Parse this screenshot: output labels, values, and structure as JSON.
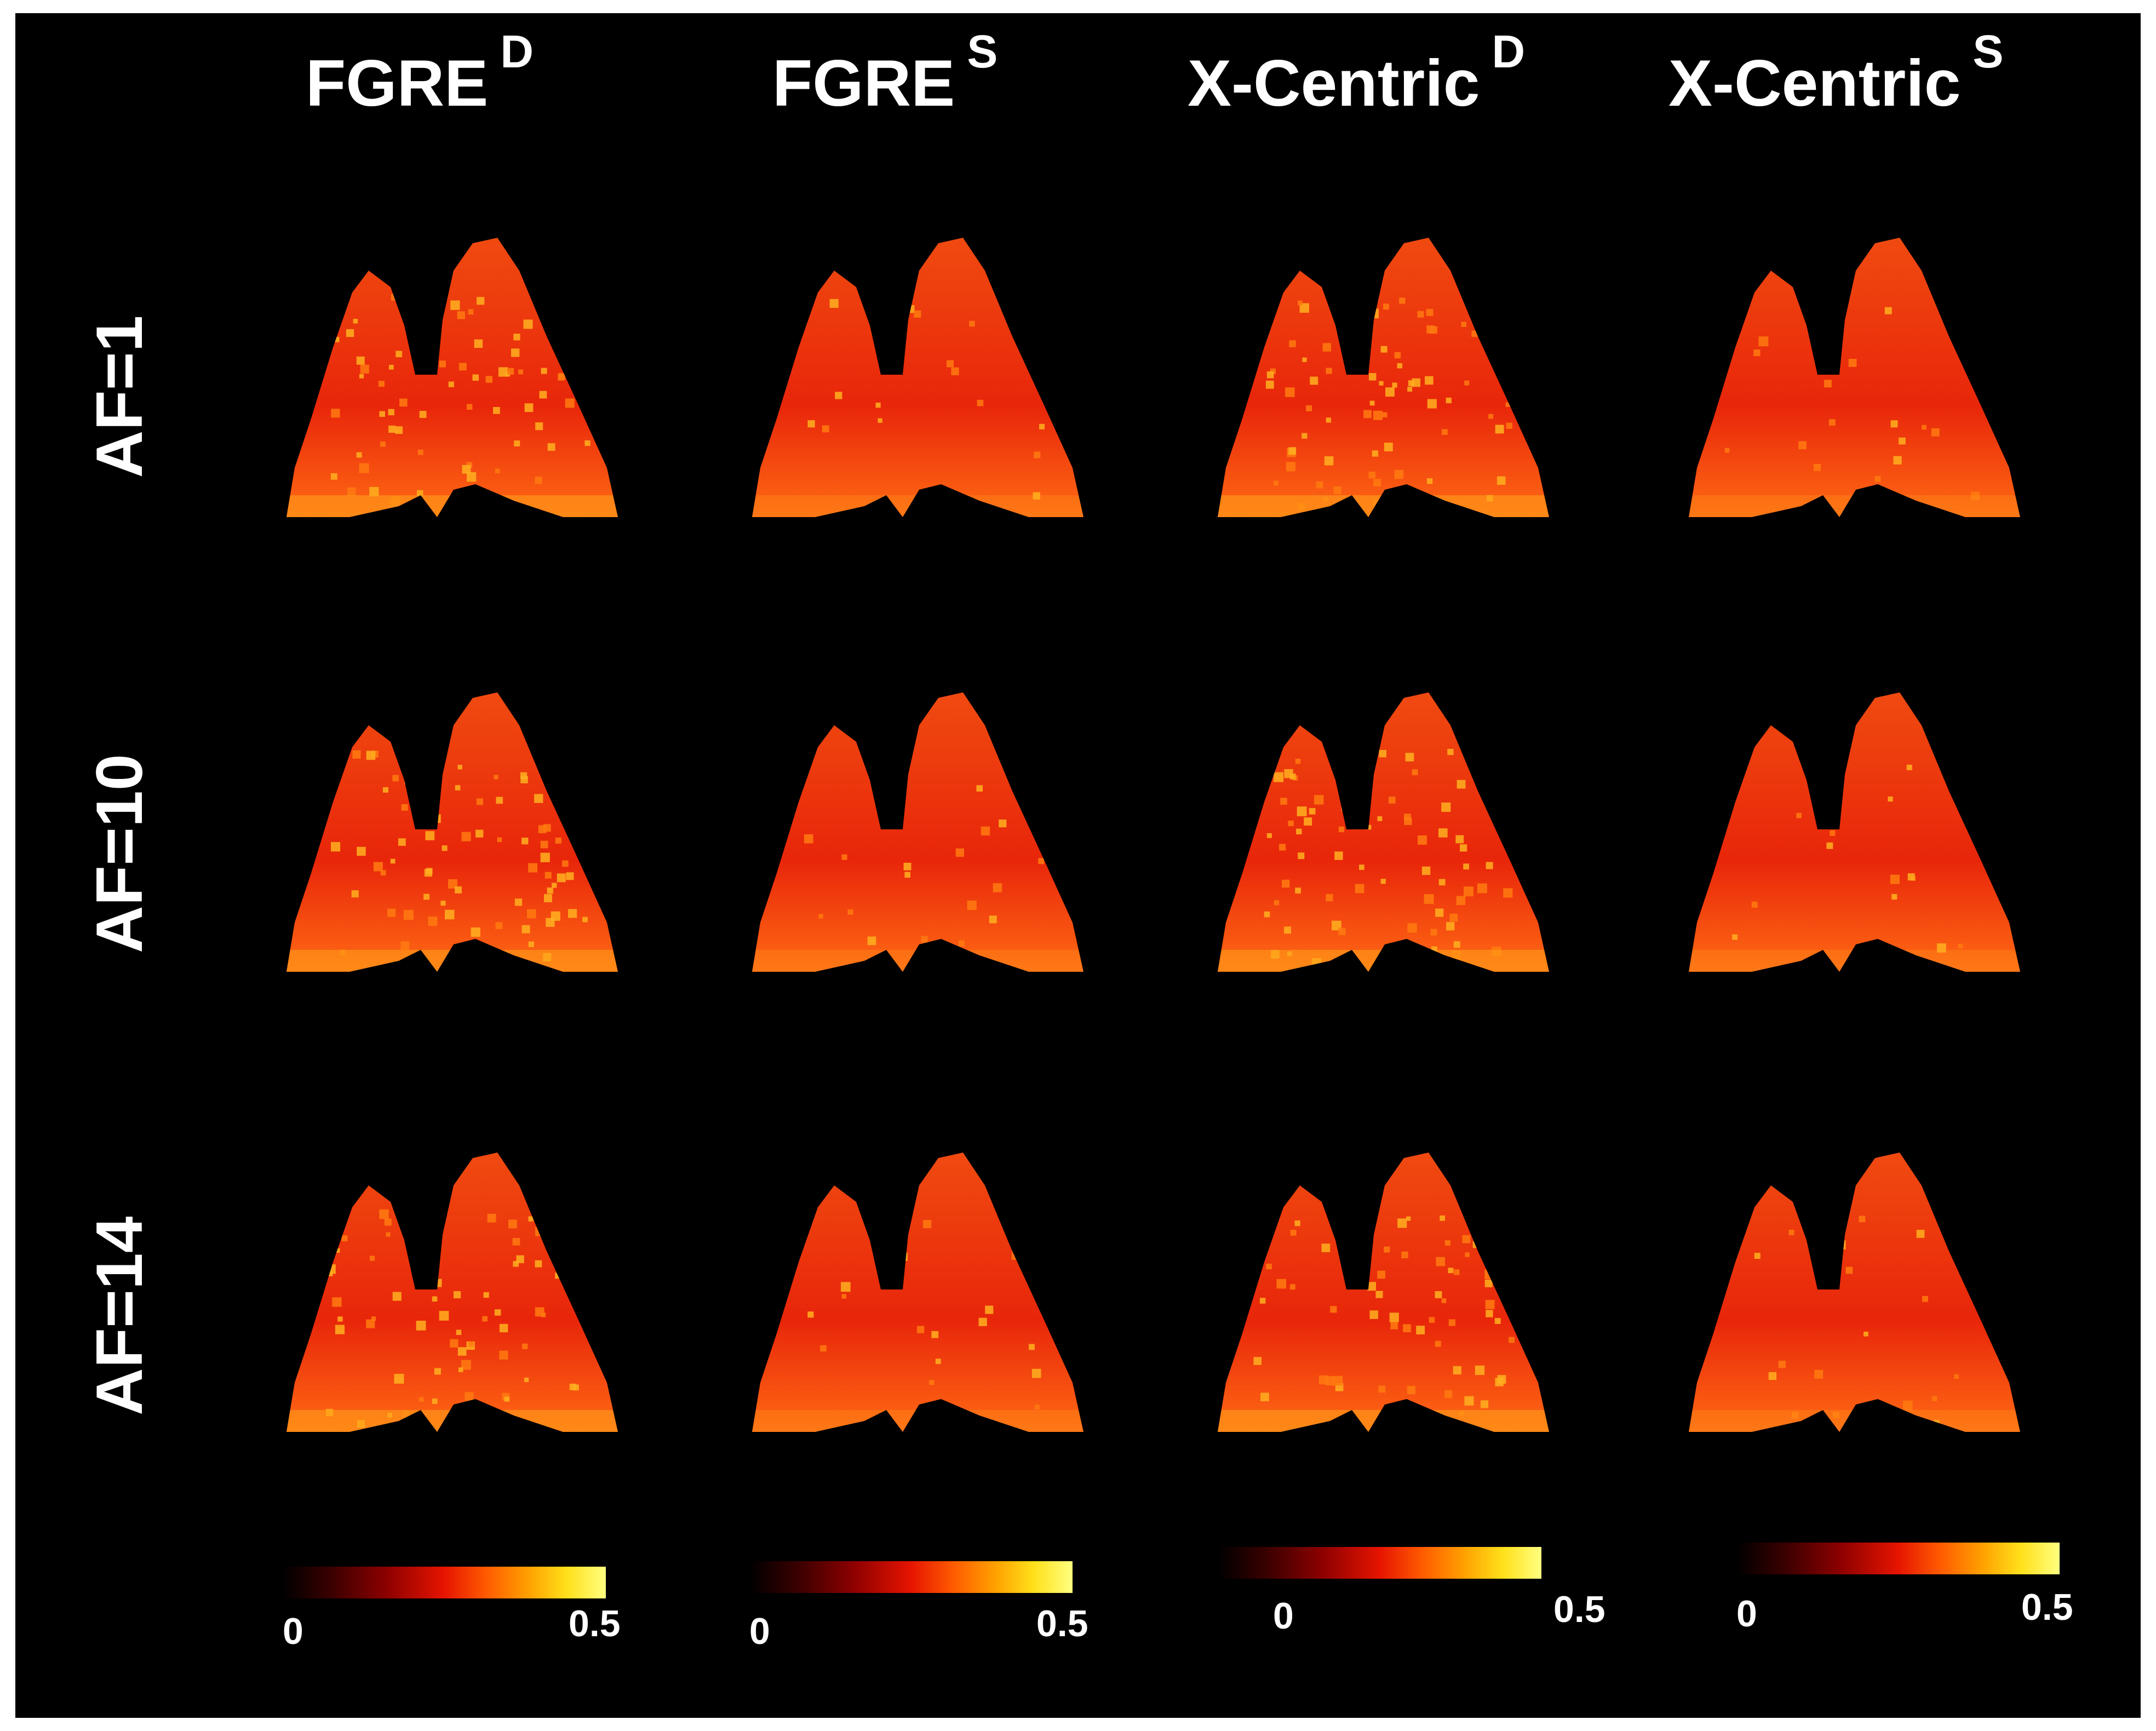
{
  "columns": [
    {
      "label": "FGRE",
      "sup": "D"
    },
    {
      "label": "FGRE",
      "sup": "S"
    },
    {
      "label": "X-Centric",
      "sup": "D"
    },
    {
      "label": "X-Centric",
      "sup": "S"
    }
  ],
  "rows": [
    {
      "label": "AF=1"
    },
    {
      "label": "AF=10"
    },
    {
      "label": "AF=14"
    }
  ],
  "colorbar": {
    "min": "0",
    "max": "0.5",
    "colors": [
      "#000000",
      "#8c0000",
      "#e61400",
      "#ff5a00",
      "#ffa000",
      "#ffff80"
    ]
  },
  "colors": {
    "background": "#000000",
    "lung_base": "#e8260a",
    "text": "#ffffff"
  }
}
